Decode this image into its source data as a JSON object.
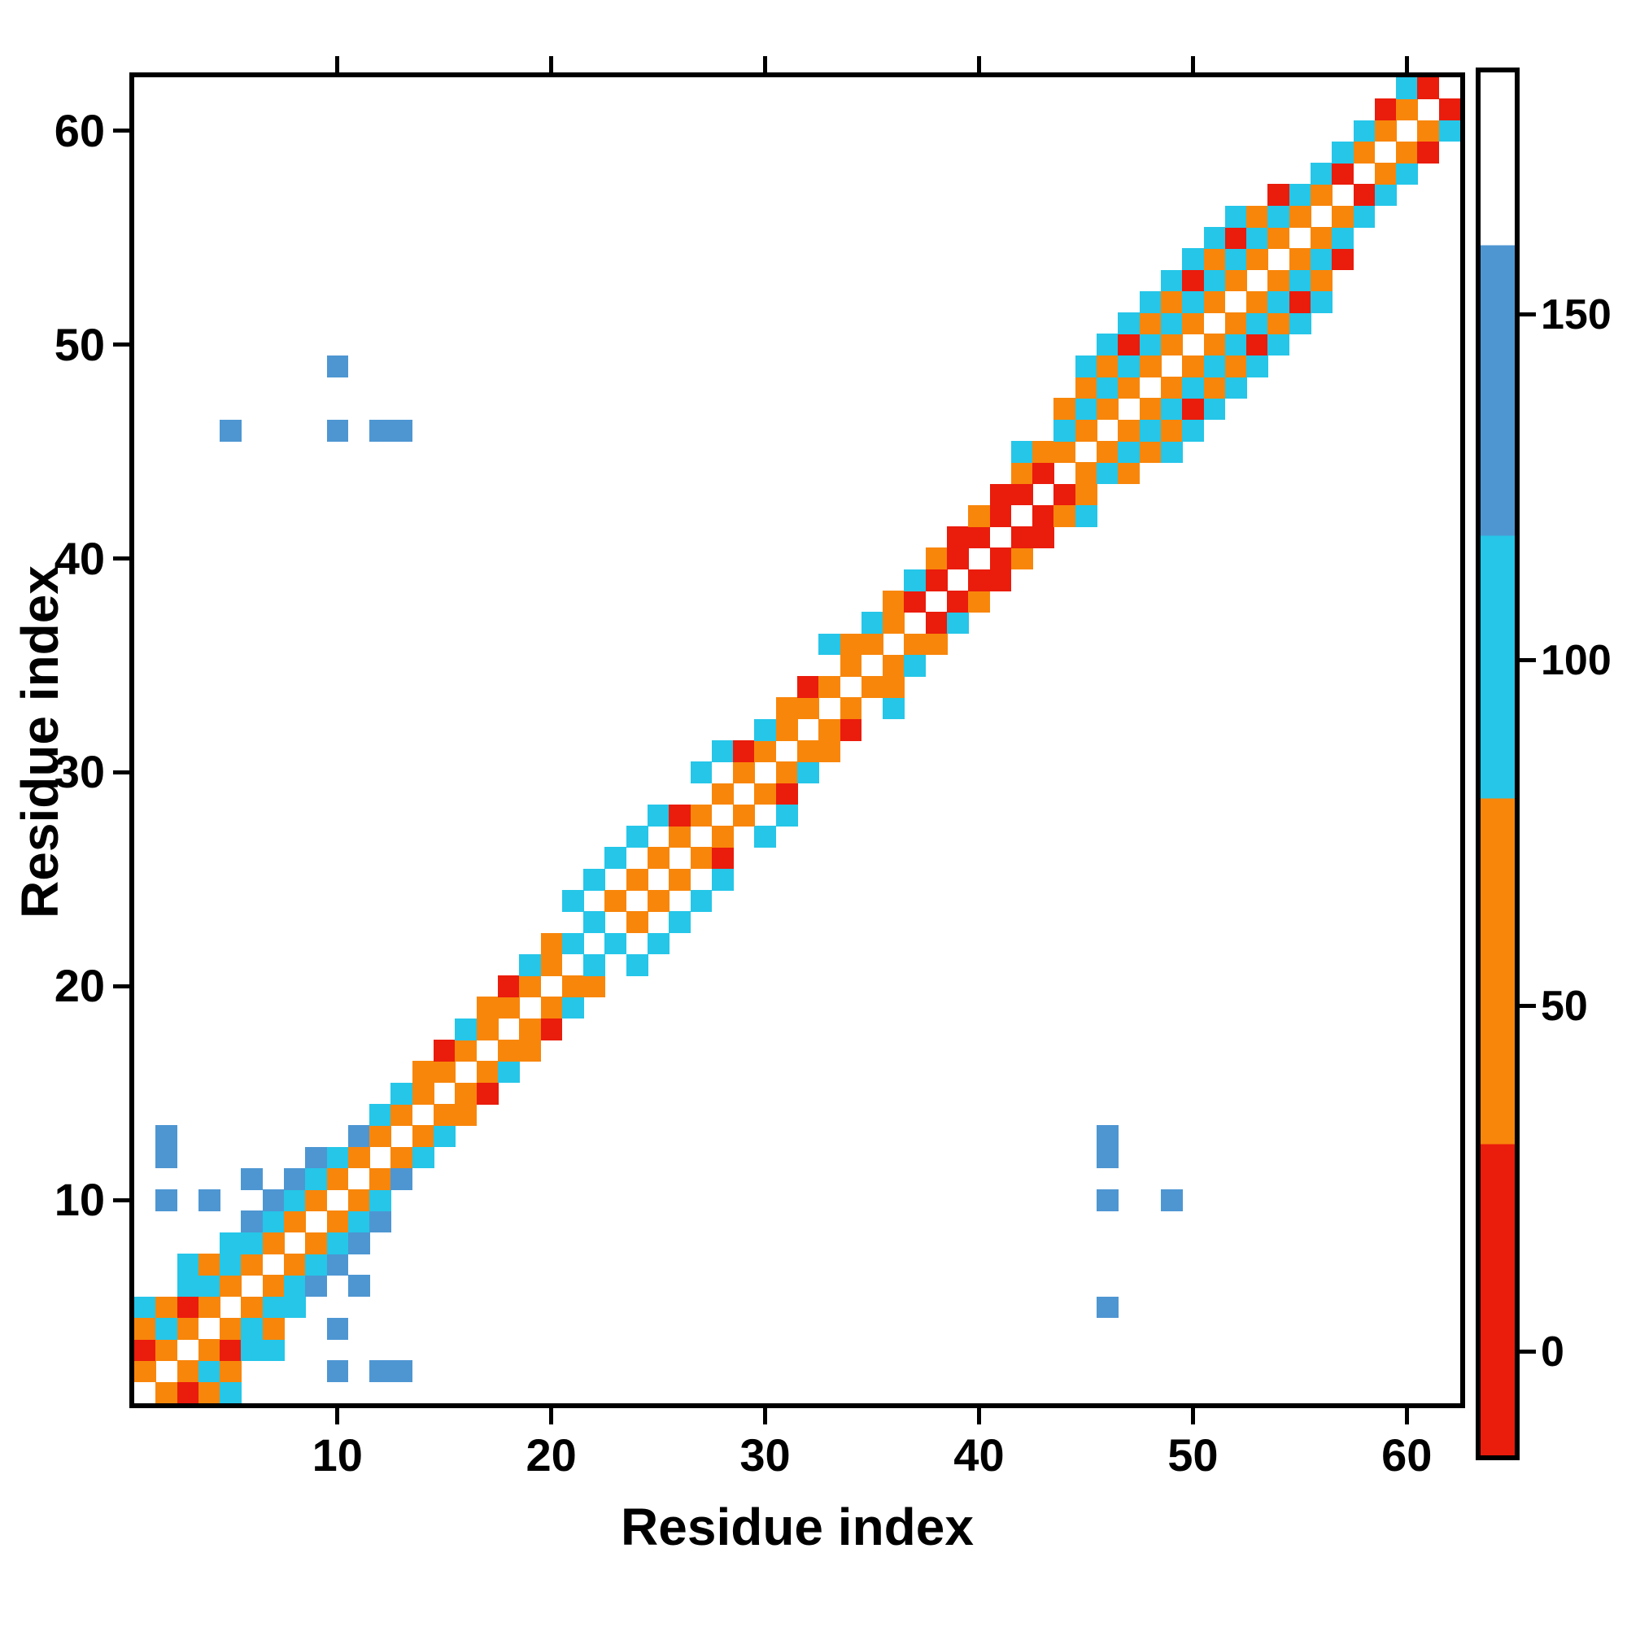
{
  "chart_data": {
    "type": "heatmap",
    "title": "",
    "xlabel": "Residue index",
    "ylabel": "Residue index",
    "n": 62,
    "axis_range": [
      1,
      62
    ],
    "x_ticks": [
      10,
      20,
      30,
      40,
      50,
      60
    ],
    "y_ticks": [
      10,
      20,
      30,
      40,
      50,
      60
    ],
    "grid": false,
    "symmetric": true,
    "background_value_color": "#ffffff",
    "colorbar": {
      "position": "right",
      "ticks": [
        0,
        50,
        100,
        150
      ],
      "vmin": -15,
      "vmax": 185,
      "segments": [
        {
          "max": 30,
          "color": "#ea1c0c",
          "label": "red"
        },
        {
          "max": 80,
          "color": "#f8860b",
          "label": "orange"
        },
        {
          "max": 118,
          "color": "#25c6e8",
          "label": "cyan"
        },
        {
          "max": 160,
          "color": "#4e96d2",
          "label": "blue"
        },
        {
          "max": 185,
          "color": "#ffffff",
          "label": "white"
        }
      ]
    },
    "cells": [
      [
        1,
        2,
        55
      ],
      [
        1,
        3,
        15
      ],
      [
        1,
        4,
        60
      ],
      [
        1,
        5,
        90
      ],
      [
        2,
        3,
        50
      ],
      [
        2,
        4,
        90
      ],
      [
        2,
        5,
        60
      ],
      [
        2,
        10,
        135
      ],
      [
        2,
        12,
        130
      ],
      [
        2,
        13,
        140
      ],
      [
        3,
        4,
        55
      ],
      [
        3,
        5,
        15
      ],
      [
        3,
        6,
        90
      ],
      [
        3,
        7,
        95
      ],
      [
        4,
        5,
        60
      ],
      [
        4,
        6,
        90
      ],
      [
        4,
        7,
        55
      ],
      [
        4,
        10,
        130
      ],
      [
        5,
        6,
        50
      ],
      [
        5,
        7,
        90
      ],
      [
        5,
        8,
        95
      ],
      [
        5,
        46,
        135
      ],
      [
        6,
        7,
        60
      ],
      [
        6,
        8,
        90
      ],
      [
        6,
        9,
        130
      ],
      [
        6,
        11,
        140
      ],
      [
        7,
        8,
        55
      ],
      [
        7,
        9,
        90
      ],
      [
        7,
        10,
        135
      ],
      [
        8,
        9,
        60
      ],
      [
        8,
        10,
        90
      ],
      [
        8,
        11,
        130
      ],
      [
        9,
        10,
        55
      ],
      [
        9,
        11,
        95
      ],
      [
        9,
        12,
        130
      ],
      [
        10,
        11,
        60
      ],
      [
        10,
        12,
        90
      ],
      [
        10,
        46,
        130
      ],
      [
        10,
        49,
        135
      ],
      [
        11,
        12,
        55
      ],
      [
        11,
        13,
        135
      ],
      [
        12,
        13,
        60
      ],
      [
        12,
        14,
        90
      ],
      [
        12,
        46,
        140
      ],
      [
        13,
        14,
        55
      ],
      [
        13,
        15,
        90
      ],
      [
        13,
        46,
        130
      ],
      [
        14,
        15,
        60
      ],
      [
        14,
        16,
        55
      ],
      [
        15,
        16,
        55
      ],
      [
        15,
        17,
        20
      ],
      [
        16,
        17,
        60
      ],
      [
        16,
        18,
        90
      ],
      [
        17,
        18,
        55
      ],
      [
        17,
        19,
        60
      ],
      [
        18,
        19,
        50
      ],
      [
        18,
        20,
        15
      ],
      [
        19,
        20,
        60
      ],
      [
        19,
        21,
        90
      ],
      [
        20,
        21,
        55
      ],
      [
        20,
        22,
        60
      ],
      [
        21,
        22,
        90
      ],
      [
        21,
        24,
        95
      ],
      [
        22,
        23,
        90
      ],
      [
        22,
        25,
        90
      ],
      [
        23,
        24,
        55
      ],
      [
        23,
        26,
        95
      ],
      [
        24,
        25,
        60
      ],
      [
        24,
        27,
        90
      ],
      [
        25,
        26,
        55
      ],
      [
        25,
        28,
        90
      ],
      [
        26,
        27,
        60
      ],
      [
        26,
        28,
        20
      ],
      [
        27,
        28,
        55
      ],
      [
        27,
        30,
        90
      ],
      [
        28,
        29,
        60
      ],
      [
        28,
        31,
        95
      ],
      [
        29,
        30,
        55
      ],
      [
        29,
        31,
        15
      ],
      [
        30,
        31,
        60
      ],
      [
        30,
        32,
        90
      ],
      [
        31,
        32,
        55
      ],
      [
        31,
        33,
        60
      ],
      [
        32,
        33,
        50
      ],
      [
        32,
        34,
        20
      ],
      [
        33,
        34,
        60
      ],
      [
        33,
        36,
        90
      ],
      [
        34,
        35,
        55
      ],
      [
        34,
        36,
        60
      ],
      [
        35,
        36,
        50
      ],
      [
        35,
        37,
        90
      ],
      [
        36,
        37,
        60
      ],
      [
        36,
        38,
        55
      ],
      [
        37,
        38,
        15
      ],
      [
        37,
        39,
        90
      ],
      [
        38,
        39,
        10
      ],
      [
        38,
        40,
        60
      ],
      [
        39,
        40,
        5
      ],
      [
        39,
        41,
        20
      ],
      [
        40,
        41,
        10
      ],
      [
        40,
        42,
        55
      ],
      [
        41,
        42,
        20
      ],
      [
        41,
        43,
        5
      ],
      [
        42,
        43,
        15
      ],
      [
        42,
        44,
        60
      ],
      [
        42,
        45,
        90
      ],
      [
        43,
        44,
        10
      ],
      [
        43,
        45,
        55
      ],
      [
        44,
        45,
        60
      ],
      [
        44,
        46,
        90
      ],
      [
        44,
        47,
        55
      ],
      [
        45,
        46,
        55
      ],
      [
        45,
        47,
        90
      ],
      [
        45,
        48,
        60
      ],
      [
        45,
        49,
        95
      ],
      [
        46,
        47,
        60
      ],
      [
        46,
        48,
        90
      ],
      [
        46,
        49,
        55
      ],
      [
        46,
        50,
        95
      ],
      [
        47,
        48,
        55
      ],
      [
        47,
        49,
        95
      ],
      [
        47,
        50,
        20
      ],
      [
        47,
        51,
        90
      ],
      [
        48,
        49,
        60
      ],
      [
        48,
        50,
        90
      ],
      [
        48,
        51,
        55
      ],
      [
        48,
        52,
        95
      ],
      [
        49,
        50,
        55
      ],
      [
        49,
        51,
        95
      ],
      [
        49,
        52,
        60
      ],
      [
        49,
        53,
        90
      ],
      [
        50,
        51,
        60
      ],
      [
        50,
        52,
        90
      ],
      [
        50,
        53,
        15
      ],
      [
        50,
        54,
        95
      ],
      [
        51,
        52,
        55
      ],
      [
        51,
        53,
        95
      ],
      [
        51,
        54,
        60
      ],
      [
        51,
        55,
        90
      ],
      [
        52,
        53,
        60
      ],
      [
        52,
        54,
        90
      ],
      [
        52,
        55,
        20
      ],
      [
        52,
        56,
        95
      ],
      [
        53,
        54,
        55
      ],
      [
        53,
        55,
        95
      ],
      [
        53,
        56,
        60
      ],
      [
        54,
        55,
        60
      ],
      [
        54,
        56,
        90
      ],
      [
        54,
        57,
        5
      ],
      [
        55,
        56,
        55
      ],
      [
        55,
        57,
        90
      ],
      [
        56,
        57,
        60
      ],
      [
        56,
        58,
        90
      ],
      [
        57,
        58,
        10
      ],
      [
        57,
        59,
        90
      ],
      [
        58,
        59,
        55
      ],
      [
        58,
        60,
        95
      ],
      [
        59,
        60,
        60
      ],
      [
        59,
        61,
        20
      ],
      [
        60,
        61,
        55
      ],
      [
        60,
        62,
        90
      ],
      [
        61,
        62,
        15
      ]
    ]
  }
}
